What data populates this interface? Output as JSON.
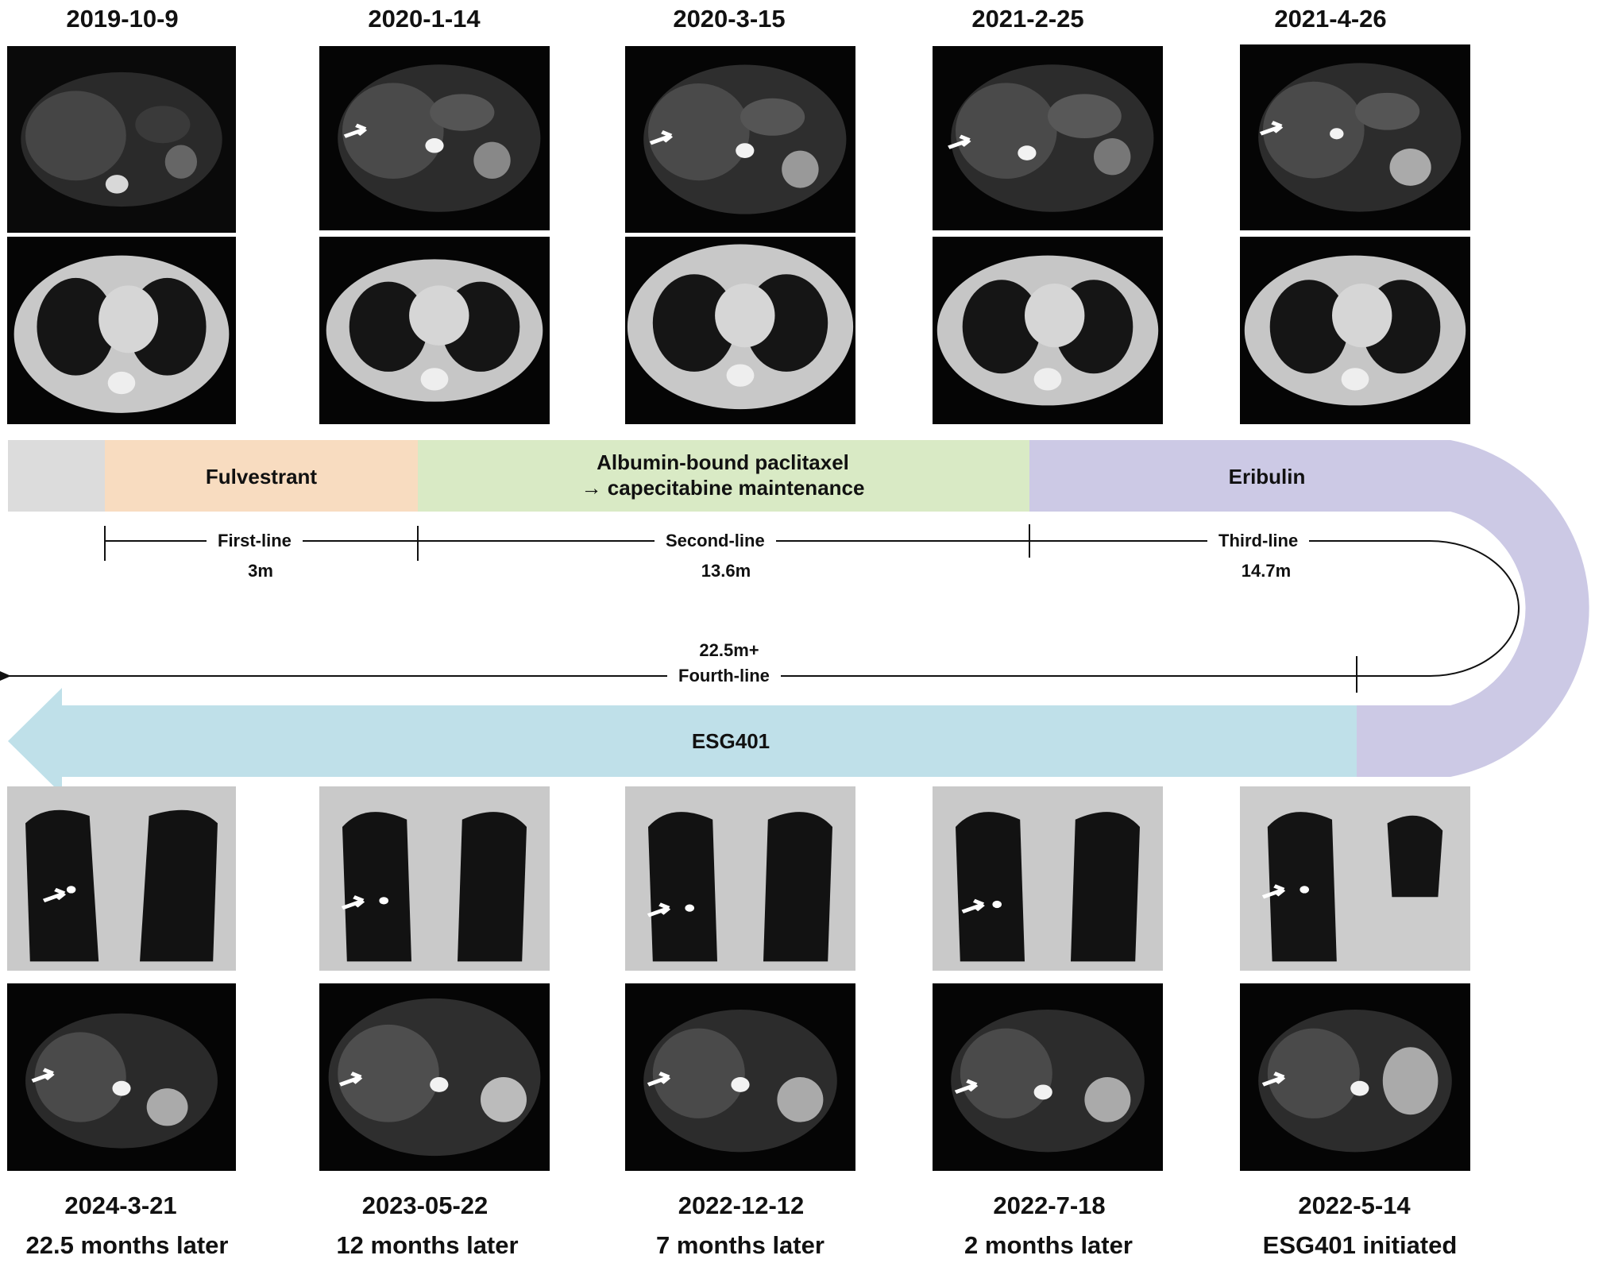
{
  "top_dates": [
    "2019-10-9",
    "2020-1-14",
    "2020-3-15",
    "2021-2-25",
    "2021-4-26"
  ],
  "bottom_dates": [
    "2024-3-21",
    "2023-05-22",
    "2022-12-12",
    "2022-7-18",
    "2022-5-14"
  ],
  "bottom_captions": [
    "22.5 months later",
    "12 months later",
    "7 months later",
    "2 months later",
    "ESG401 initiated"
  ],
  "treatments": {
    "fulvestrant": "Fulvestrant",
    "albumin_line1": "Albumin-bound paclitaxel",
    "albumin_line2": "→ capecitabine maintenance",
    "eribulin": "Eribulin",
    "esg401": "ESG401"
  },
  "lines": {
    "first": {
      "label": "First-line",
      "duration": "3m"
    },
    "second": {
      "label": "Second-line",
      "duration": "13.6m"
    },
    "third": {
      "label": "Third-line",
      "duration": "14.7m"
    },
    "fourth": {
      "label": "Fourth-line",
      "duration": "22.5m+"
    }
  },
  "colors": {
    "grey_band": "#dcdcdc",
    "fulvestrant": "#f8dcc0",
    "albumin": "#d9eac5",
    "eribulin": "#ccc9e5",
    "esg401": "#bfe0e9",
    "arrow": "#ffffff"
  }
}
